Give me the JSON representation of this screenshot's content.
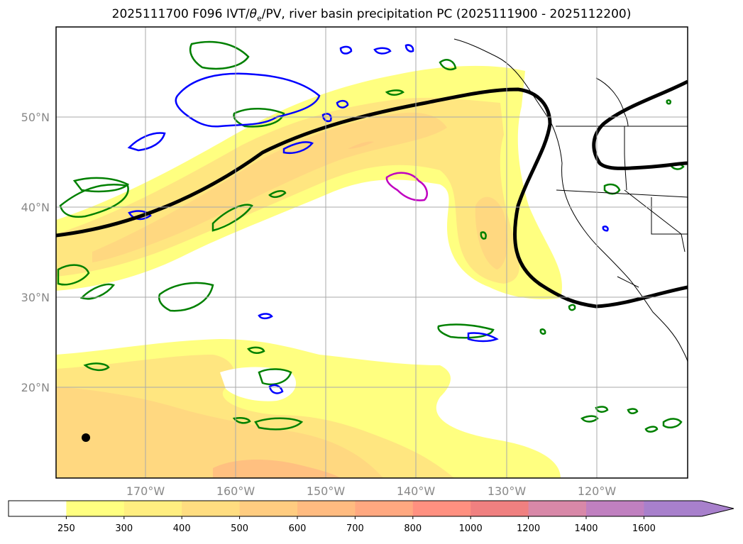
{
  "title": {
    "prefix": "2025111700 F096 IVT/",
    "theta": "θ",
    "sub": "e",
    "suffix": "/PV, river basin precipitation PC (2025111900 - 2025112200)"
  },
  "map": {
    "lon_labels": [
      "170°W",
      "160°W",
      "150°W",
      "140°W",
      "130°W",
      "120°W"
    ],
    "lat_labels": [
      "50°N",
      "40°N",
      "30°N",
      "20°N"
    ],
    "grid": true
  },
  "colorbar": {
    "ticks": [
      "250",
      "300",
      "400",
      "500",
      "600",
      "700",
      "800",
      "1000",
      "1200",
      "1400",
      "1600"
    ],
    "colors": [
      "#ffffff",
      "#ffff80",
      "#ffee80",
      "#ffdd80",
      "#ffcc80",
      "#ffbb80",
      "#ffa880",
      "#ff9080",
      "#f08080",
      "#d888a8",
      "#c080c0",
      "#a880cc"
    ],
    "extend": "max"
  }
}
